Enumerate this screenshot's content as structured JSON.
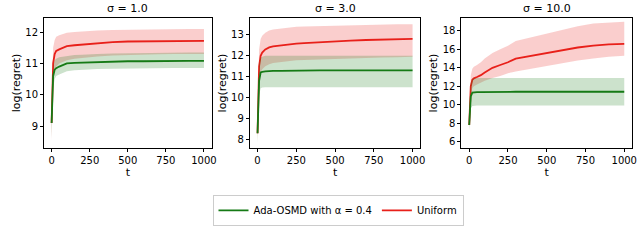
{
  "chart_data": [
    {
      "type": "line",
      "title": "σ = 1.0",
      "x_label": "t",
      "y_label": "log(regret)",
      "x": [
        0,
        10,
        20,
        30,
        50,
        75,
        100,
        150,
        200,
        250,
        300,
        400,
        500,
        600,
        700,
        800,
        900,
        1000
      ],
      "xlim": [
        -50,
        1050
      ],
      "xticks": [
        0,
        250,
        500,
        750,
        1000
      ],
      "ylim": [
        8.3,
        12.45
      ],
      "yticks": [
        9,
        10,
        11,
        12
      ],
      "legend": "bottom",
      "series": [
        {
          "name": "Uniform",
          "color": "#e8201a",
          "values": [
            9.1,
            11.0,
            11.3,
            11.4,
            11.45,
            11.5,
            11.55,
            11.58,
            11.6,
            11.62,
            11.65,
            11.68,
            11.7,
            11.7,
            11.71,
            11.71,
            11.72,
            11.72
          ],
          "lower": [
            8.5,
            10.4,
            10.75,
            10.9,
            11.0,
            11.05,
            11.1,
            11.15,
            11.18,
            11.2,
            11.22,
            11.25,
            11.27,
            11.28,
            11.29,
            11.3,
            11.3,
            11.3
          ],
          "upper": [
            9.6,
            11.5,
            11.75,
            11.85,
            11.9,
            11.95,
            11.98,
            12.0,
            12.02,
            12.04,
            12.05,
            12.07,
            12.08,
            12.09,
            12.1,
            12.1,
            12.1,
            12.1
          ]
        },
        {
          "name": "Ada-OSMD with α = 0.4",
          "color": "#157a15",
          "values": [
            9.1,
            10.6,
            10.8,
            10.85,
            10.9,
            10.95,
            11.0,
            11.02,
            11.03,
            11.04,
            11.05,
            11.06,
            11.07,
            11.07,
            11.08,
            11.08,
            11.08,
            11.08
          ],
          "lower": [
            8.6,
            10.2,
            10.5,
            10.6,
            10.65,
            10.7,
            10.75,
            10.78,
            10.8,
            10.8,
            10.82,
            10.83,
            10.84,
            10.84,
            10.85,
            10.85,
            10.85,
            10.85
          ],
          "upper": [
            9.6,
            10.9,
            11.1,
            11.15,
            11.2,
            11.22,
            11.25,
            11.27,
            11.28,
            11.3,
            11.3,
            11.32,
            11.33,
            11.34,
            11.35,
            11.35,
            11.35,
            11.35
          ]
        }
      ]
    },
    {
      "type": "line",
      "title": "σ = 3.0",
      "x_label": "t",
      "y_label": "log(regret)",
      "x": [
        0,
        10,
        20,
        30,
        50,
        75,
        100,
        150,
        200,
        250,
        300,
        400,
        500,
        600,
        700,
        800,
        900,
        1000
      ],
      "xlim": [
        -50,
        1050
      ],
      "xticks": [
        0,
        250,
        500,
        750,
        1000
      ],
      "ylim": [
        7.6,
        13.8
      ],
      "yticks": [
        8,
        9,
        10,
        11,
        12,
        13
      ],
      "series": [
        {
          "name": "Uniform",
          "color": "#e8201a",
          "values": [
            8.3,
            11.5,
            12.0,
            12.15,
            12.3,
            12.4,
            12.45,
            12.5,
            12.55,
            12.58,
            12.6,
            12.65,
            12.7,
            12.72,
            12.75,
            12.77,
            12.79,
            12.8
          ],
          "lower": [
            7.9,
            10.8,
            11.2,
            11.35,
            11.5,
            11.6,
            11.65,
            11.7,
            11.75,
            11.78,
            11.8,
            11.83,
            11.86,
            11.88,
            11.9,
            11.92,
            11.93,
            11.95
          ],
          "upper": [
            8.8,
            12.3,
            12.8,
            12.95,
            13.1,
            13.2,
            13.25,
            13.3,
            13.35,
            13.38,
            13.4,
            13.42,
            13.45,
            13.47,
            13.48,
            13.5,
            13.5,
            13.5
          ]
        },
        {
          "name": "Ada-OSMD with α = 0.4",
          "color": "#157a15",
          "values": [
            8.3,
            10.8,
            11.2,
            11.23,
            11.25,
            11.27,
            11.28,
            11.28,
            11.29,
            11.29,
            11.3,
            11.3,
            11.3,
            11.3,
            11.3,
            11.3,
            11.3,
            11.3
          ],
          "lower": [
            7.8,
            10.1,
            10.45,
            10.48,
            10.5,
            10.5,
            10.5,
            10.5,
            10.5,
            10.5,
            10.5,
            10.5,
            10.5,
            10.5,
            10.5,
            10.5,
            10.5,
            10.5
          ],
          "upper": [
            8.8,
            11.6,
            11.9,
            11.95,
            12.0,
            12.0,
            12.0,
            12.0,
            12.0,
            12.0,
            12.0,
            12.0,
            12.0,
            12.0,
            12.0,
            12.0,
            12.0,
            12.0
          ]
        }
      ]
    },
    {
      "type": "line",
      "title": "σ = 10.0",
      "x_label": "t",
      "y_label": "log(regret)",
      "x": [
        0,
        10,
        20,
        30,
        50,
        75,
        100,
        150,
        200,
        250,
        300,
        400,
        500,
        600,
        700,
        800,
        900,
        1000
      ],
      "xlim": [
        -50,
        1050
      ],
      "xticks": [
        0,
        250,
        500,
        750,
        1000
      ],
      "ylim": [
        5.3,
        19.4
      ],
      "yticks": [
        6,
        8,
        10,
        12,
        14,
        16,
        18
      ],
      "series": [
        {
          "name": "Uniform",
          "color": "#e8201a",
          "values": [
            7.8,
            12.0,
            12.7,
            12.85,
            13.0,
            13.2,
            13.5,
            14.0,
            14.3,
            14.6,
            15.0,
            15.3,
            15.6,
            15.9,
            16.2,
            16.4,
            16.55,
            16.6
          ],
          "lower": [
            7.2,
            11.0,
            11.8,
            12.0,
            12.2,
            12.4,
            12.6,
            12.9,
            13.1,
            13.4,
            13.6,
            13.9,
            14.2,
            14.5,
            14.8,
            15.0,
            15.2,
            15.3
          ],
          "upper": [
            8.4,
            13.2,
            13.9,
            14.1,
            14.3,
            14.6,
            15.0,
            15.6,
            16.0,
            16.4,
            16.9,
            17.3,
            17.7,
            18.1,
            18.5,
            18.8,
            18.9,
            19.0
          ]
        },
        {
          "name": "Ada-OSMD with α = 0.4",
          "color": "#157a15",
          "values": [
            7.8,
            10.9,
            11.3,
            11.33,
            11.35,
            11.37,
            11.38,
            11.39,
            11.4,
            11.4,
            11.4,
            11.4,
            11.4,
            11.4,
            11.4,
            11.4,
            11.4,
            11.4
          ],
          "lower": [
            7.2,
            9.6,
            9.85,
            9.88,
            9.9,
            9.9,
            9.9,
            9.9,
            9.9,
            9.9,
            9.9,
            9.9,
            9.9,
            9.9,
            9.9,
            9.9,
            9.9,
            9.9
          ],
          "upper": [
            8.4,
            12.3,
            12.8,
            12.85,
            12.9,
            12.9,
            12.9,
            12.9,
            12.9,
            12.9,
            12.9,
            12.9,
            12.9,
            12.9,
            12.9,
            12.9,
            12.9,
            12.9
          ]
        }
      ]
    }
  ]
}
